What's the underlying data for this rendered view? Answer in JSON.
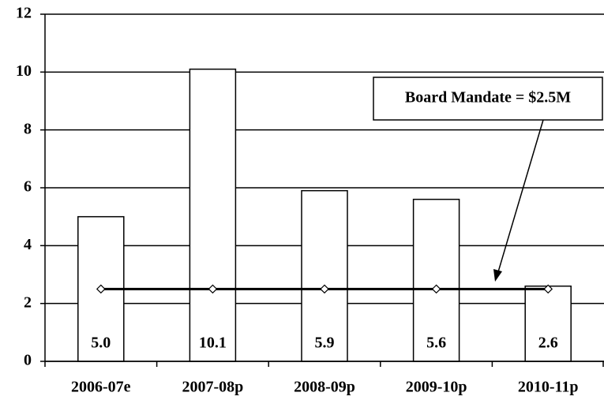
{
  "chart_data": {
    "type": "bar",
    "categories": [
      "2006-07e",
      "2007-08p",
      "2008-09p",
      "2009-10p",
      "2010-11p"
    ],
    "series": [
      {
        "type": "bar",
        "color": "#ffffff",
        "values": [
          5.0,
          10.1,
          5.9,
          5.6,
          2.6
        ],
        "value_labels": [
          "5.0",
          "10.1",
          "5.9",
          "5.6",
          "2.6"
        ]
      },
      {
        "type": "line",
        "color": "#000000",
        "values": [
          2.5,
          2.5,
          2.5,
          2.5,
          2.5
        ]
      }
    ],
    "annotation": "Board Mandate = $2.5M",
    "ylim": [
      0,
      12
    ],
    "yticks": [
      0,
      2,
      4,
      6,
      8,
      10,
      12
    ],
    "grid": true
  }
}
